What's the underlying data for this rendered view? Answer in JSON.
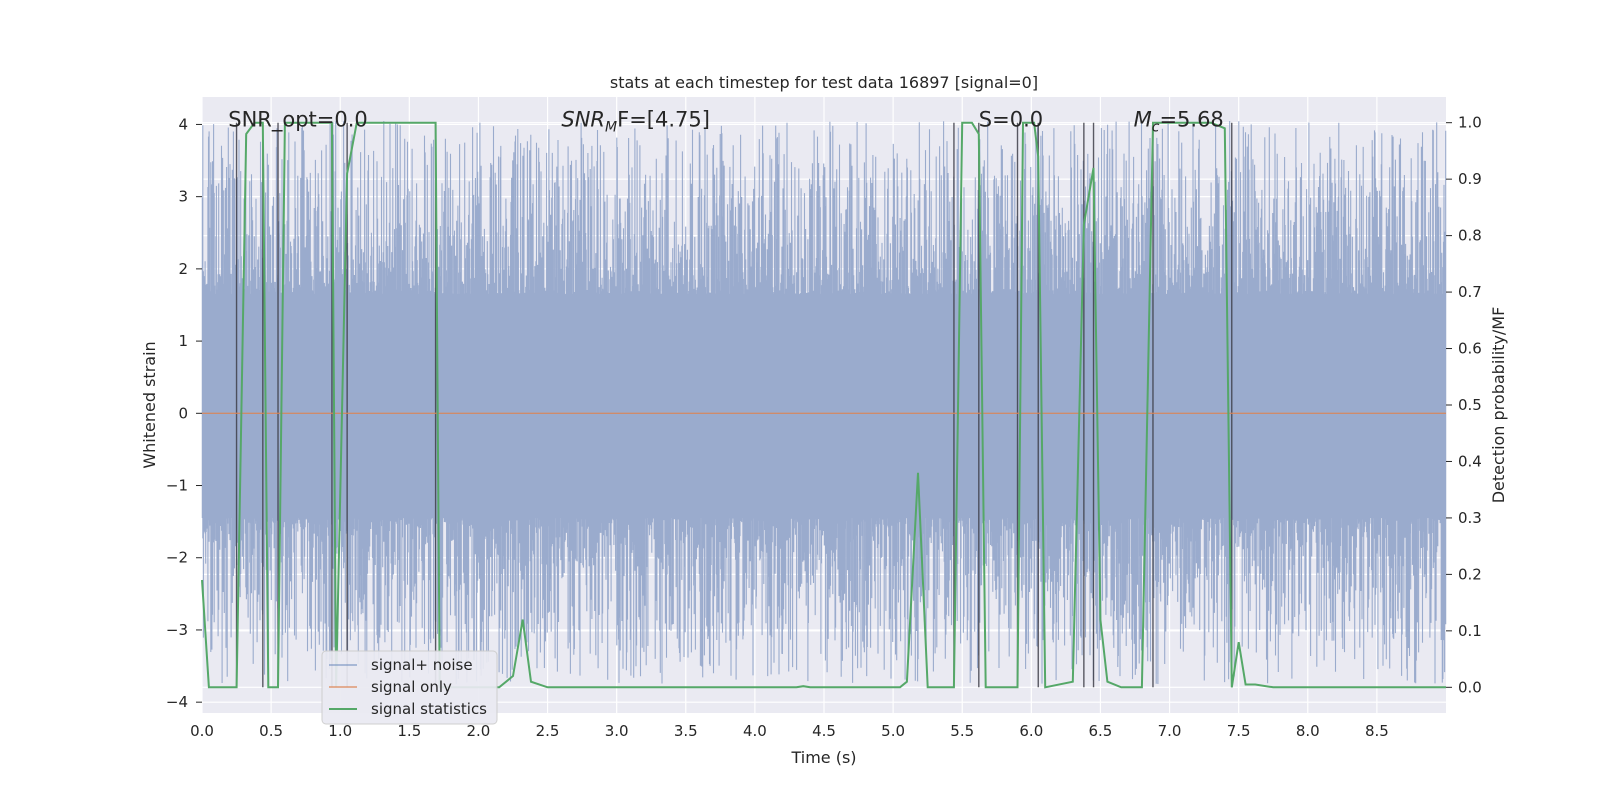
{
  "chart_data": {
    "type": "line",
    "title": "stats at each timestep for test data 16897 [signal=0]",
    "xlabel": "Time (s)",
    "ylabel_left": "Whitened strain",
    "ylabel_right": "Detection probability/MF",
    "xlim": [
      0.0,
      9.0
    ],
    "ylim_left": [
      -4.15,
      4.38
    ],
    "ylim_right": [
      -0.0455,
      1.0455
    ],
    "x_ticks": [
      "0.0",
      "0.5",
      "1.0",
      "1.5",
      "2.0",
      "2.5",
      "3.0",
      "3.5",
      "4.0",
      "4.5",
      "5.0",
      "5.5",
      "6.0",
      "6.5",
      "7.0",
      "7.5",
      "8.0",
      "8.5"
    ],
    "x_tick_values": [
      0.0,
      0.5,
      1.0,
      1.5,
      2.0,
      2.5,
      3.0,
      3.5,
      4.0,
      4.5,
      5.0,
      5.5,
      6.0,
      6.5,
      7.0,
      7.5,
      8.0,
      8.5
    ],
    "y_left_ticks": [
      "−4",
      "−3",
      "−2",
      "−1",
      "0",
      "1",
      "2",
      "3",
      "4"
    ],
    "y_left_tick_values": [
      -4,
      -3,
      -2,
      -1,
      0,
      1,
      2,
      3,
      4
    ],
    "y_right_ticks": [
      "0.0",
      "0.1",
      "0.2",
      "0.3",
      "0.4",
      "0.5",
      "0.6",
      "0.7",
      "0.8",
      "0.9",
      "1.0"
    ],
    "y_right_tick_values": [
      0.0,
      0.1,
      0.2,
      0.3,
      0.4,
      0.5,
      0.6,
      0.7,
      0.8,
      0.9,
      1.0
    ],
    "annotations": [
      {
        "text": "SNR_opt=0.0",
        "x": 0.19,
        "y": 4.0
      },
      {
        "text": "SNR",
        "sub": "M",
        "suffix": "F=[4.75]",
        "x": 2.6,
        "y": 4.0
      },
      {
        "text": "S=0.0",
        "x": 5.62,
        "y": 4.0
      },
      {
        "text": "M",
        "sub": "c",
        "suffix": "=5.68",
        "x": 6.74,
        "y": 4.0
      }
    ],
    "legend": {
      "position": "lower-left",
      "entries": [
        "signal+ noise",
        "signal only",
        "signal statistics"
      ]
    },
    "series": [
      {
        "name": "signal+ noise",
        "color": "#4c72b0",
        "style": "noise band",
        "envelope": {
          "inner": [
            -1.45,
            1.65
          ],
          "outer": [
            -3.75,
            4.05
          ]
        }
      },
      {
        "name": "signal only",
        "color": "#dd8452",
        "x": [
          0.0,
          9.0
        ],
        "y": [
          0.0,
          0.0
        ]
      },
      {
        "name": "signal statistics",
        "color": "#55a868",
        "axis": "right",
        "x": [
          0.0,
          0.05,
          0.25,
          0.32,
          0.38,
          0.44,
          0.48,
          0.55,
          0.6,
          0.62,
          0.68,
          0.94,
          0.97,
          1.05,
          1.12,
          1.55,
          1.69,
          1.72,
          1.78,
          2.15,
          2.25,
          2.32,
          2.38,
          2.5,
          4.3,
          4.35,
          4.4,
          5.05,
          5.1,
          5.18,
          5.25,
          5.44,
          5.5,
          5.57,
          5.62,
          5.67,
          5.9,
          5.94,
          6.02,
          6.05,
          6.1,
          6.3,
          6.38,
          6.45,
          6.5,
          6.55,
          6.65,
          6.8,
          6.88,
          6.96,
          7.3,
          7.4,
          7.45,
          7.5,
          7.55,
          7.62,
          7.75,
          9.0
        ],
        "y": [
          0.19,
          0.0,
          0.0,
          0.98,
          1.0,
          1.0,
          0.0,
          0.0,
          1.0,
          1.0,
          1.0,
          1.0,
          0.0,
          0.91,
          1.0,
          1.0,
          1.0,
          0.0,
          0.0,
          0.0,
          0.02,
          0.12,
          0.01,
          0.0,
          0.0,
          0.002,
          0.0,
          0.0,
          0.01,
          0.38,
          0.0,
          0.0,
          1.0,
          1.0,
          0.98,
          0.0,
          0.0,
          1.0,
          1.0,
          0.94,
          0.0,
          0.01,
          0.82,
          0.92,
          0.12,
          0.01,
          0.0,
          0.0,
          1.0,
          1.0,
          1.0,
          0.99,
          0.0,
          0.08,
          0.005,
          0.005,
          0.0,
          0.0
        ]
      }
    ],
    "vertical_markers": [
      0.25,
      0.44,
      0.55,
      0.94,
      1.05,
      1.69,
      5.44,
      5.62,
      5.9,
      6.05,
      6.38,
      6.45,
      6.88,
      7.45
    ]
  }
}
